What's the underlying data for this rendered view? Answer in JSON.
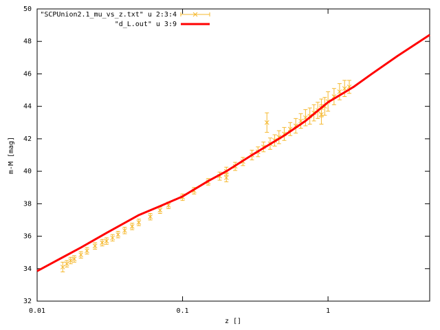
{
  "chart_data": [
    {
      "type": "errorbar",
      "name": "\"SCPUnion2.1_mu_vs_z.txt\" u 2:3:4",
      "color": "#f5b82e",
      "x": [
        0.015,
        0.016,
        0.017,
        0.018,
        0.02,
        0.022,
        0.025,
        0.028,
        0.03,
        0.033,
        0.036,
        0.04,
        0.045,
        0.05,
        0.06,
        0.07,
        0.08,
        0.1,
        0.12,
        0.15,
        0.18,
        0.2,
        0.2,
        0.23,
        0.26,
        0.3,
        0.33,
        0.36,
        0.38,
        0.4,
        0.43,
        0.46,
        0.5,
        0.55,
        0.6,
        0.65,
        0.7,
        0.75,
        0.8,
        0.85,
        0.9,
        0.9,
        0.95,
        1.0,
        1.1,
        1.2,
        1.3,
        1.4
      ],
      "values": [
        34.1,
        34.3,
        34.5,
        34.6,
        34.85,
        35.1,
        35.4,
        35.6,
        35.7,
        35.9,
        36.1,
        36.35,
        36.6,
        36.85,
        37.2,
        37.6,
        37.9,
        38.4,
        38.8,
        39.35,
        39.7,
        40.0,
        39.6,
        40.3,
        40.6,
        41.0,
        41.2,
        41.5,
        43.0,
        41.7,
        41.9,
        42.1,
        42.3,
        42.6,
        42.8,
        43.1,
        43.3,
        43.4,
        43.6,
        43.75,
        43.9,
        43.5,
        44.0,
        44.3,
        44.6,
        44.9,
        45.1,
        45.2
      ],
      "errors": [
        0.3,
        0.2,
        0.2,
        0.2,
        0.2,
        0.2,
        0.2,
        0.2,
        0.2,
        0.2,
        0.2,
        0.2,
        0.2,
        0.2,
        0.2,
        0.2,
        0.2,
        0.2,
        0.2,
        0.2,
        0.25,
        0.25,
        0.25,
        0.25,
        0.25,
        0.3,
        0.3,
        0.3,
        0.6,
        0.35,
        0.35,
        0.4,
        0.4,
        0.4,
        0.45,
        0.45,
        0.5,
        0.5,
        0.5,
        0.5,
        0.55,
        0.6,
        0.55,
        0.6,
        0.5,
        0.5,
        0.5,
        0.4
      ],
      "xlabel": "z []",
      "ylabel": "m-M [mag]",
      "xlim": [
        0.01,
        5
      ],
      "ylim": [
        32,
        50
      ],
      "log_x": true,
      "xticks": [
        0.01,
        0.1,
        1
      ],
      "yticks": [
        32,
        34,
        36,
        38,
        40,
        42,
        44,
        46,
        48,
        50
      ],
      "legend": "top-left"
    },
    {
      "type": "line",
      "name": "\"d_L.out\" u 3:9",
      "color": "#ff0000",
      "x": [
        0.01,
        0.015,
        0.02,
        0.03,
        0.05,
        0.07,
        0.1,
        0.15,
        0.2,
        0.3,
        0.5,
        0.7,
        1,
        1.5,
        2,
        3,
        5
      ],
      "values": [
        33.85,
        34.7,
        35.3,
        36.2,
        37.3,
        37.85,
        38.45,
        39.4,
        40.0,
        41.0,
        42.2,
        43.1,
        44.25,
        45.2,
        46.0,
        47.1,
        48.4
      ]
    }
  ]
}
